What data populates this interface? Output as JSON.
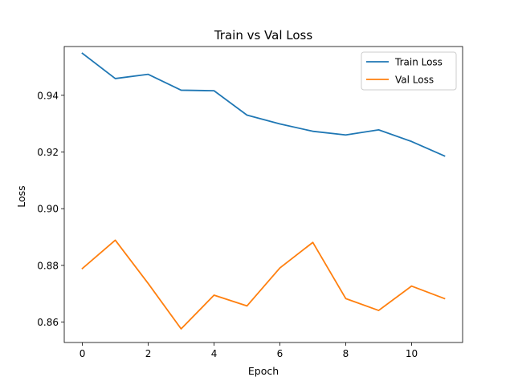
{
  "chart_data": {
    "type": "line",
    "title": "Train vs Val Loss",
    "xlabel": "Epoch",
    "ylabel": "Loss",
    "x": [
      0,
      1,
      2,
      3,
      4,
      5,
      6,
      7,
      8,
      9,
      10,
      11
    ],
    "xlim": [
      -0.55,
      11.55
    ],
    "ylim": [
      0.8528,
      0.9572
    ],
    "xticks": [
      0,
      2,
      4,
      6,
      8,
      10
    ],
    "xtick_labels": [
      "0",
      "2",
      "4",
      "6",
      "8",
      "10"
    ],
    "yticks": [
      0.86,
      0.88,
      0.9,
      0.92,
      0.94
    ],
    "ytick_labels": [
      "0.86",
      "0.88",
      "0.90",
      "0.92",
      "0.94"
    ],
    "grid": false,
    "legend_position": "top-right",
    "series": [
      {
        "name": "Train Loss",
        "color": "#1f77b4",
        "values": [
          0.9548,
          0.9459,
          0.9474,
          0.9418,
          0.9416,
          0.933,
          0.9299,
          0.9273,
          0.926,
          0.9278,
          0.9237,
          0.9186
        ]
      },
      {
        "name": "Val Loss",
        "color": "#ff7f0e",
        "values": [
          0.8789,
          0.8889,
          0.8736,
          0.8576,
          0.8695,
          0.8657,
          0.8791,
          0.8881,
          0.8683,
          0.8641,
          0.8727,
          0.8683
        ]
      }
    ]
  }
}
